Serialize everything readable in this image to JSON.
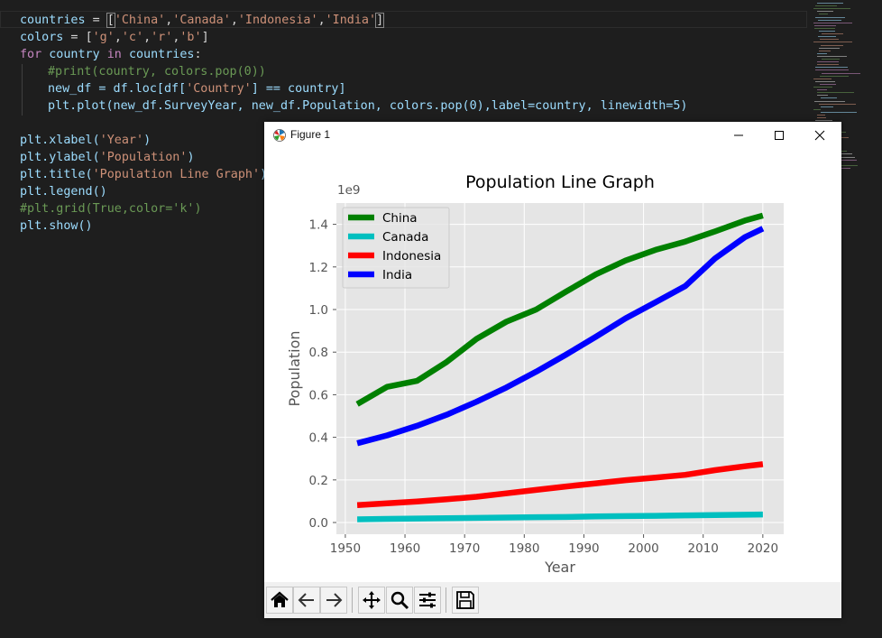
{
  "editor": {
    "line1": {
      "var": "countries",
      "eq": " = ",
      "open": "[",
      "items": [
        "'China'",
        "'Canada'",
        "'Indonesia'",
        "'India'"
      ],
      "close": "]"
    },
    "line2": {
      "var": "colors",
      "eq": " = ",
      "open": "[",
      "items": [
        "'g'",
        "'c'",
        "'r'",
        "'b'"
      ],
      "close": "]"
    },
    "line3": {
      "kw_for": "for",
      "var": "country",
      "kw_in": "in",
      "iter": "countries",
      "colon": ":"
    },
    "line4": {
      "comment": "#print(country, colors.pop(0))"
    },
    "line5": {
      "var": "new_df",
      "rest": " = df.loc[df[",
      "str": "'Country'",
      "rest2": "] == country]"
    },
    "line6": {
      "text": "plt.plot(new_df.SurveyYear, new_df.Population, colors.pop(0),label=country, linewidth=5)"
    },
    "line8": {
      "fn": "plt.xlabel(",
      "str": "'Year'",
      "close": ")"
    },
    "line9": {
      "fn": "plt.ylabel(",
      "str": "'Population'",
      "close": ")"
    },
    "line10": {
      "fn": "plt.title(",
      "str": "'Population Line Graph'",
      "close": ")"
    },
    "line11": {
      "text": "plt.legend()"
    },
    "line12": {
      "comment": "#plt.grid(True,color='k')"
    },
    "line13": {
      "text": "plt.show()"
    }
  },
  "window": {
    "title": "Figure 1"
  },
  "toolbar": {
    "buttons": [
      "home-icon",
      "back-icon",
      "forward-icon",
      "pan-icon",
      "zoom-icon",
      "configure-subplots-icon",
      "save-icon"
    ]
  },
  "chart_data": {
    "type": "line",
    "title": "Population Line Graph",
    "xlabel": "Year",
    "ylabel": "Population",
    "offset_text": "1e9",
    "xlim": [
      1948.5,
      2023.5
    ],
    "ylim": [
      -0.055,
      1.5
    ],
    "xticks": [
      1950,
      1960,
      1970,
      1980,
      1990,
      2000,
      2010,
      2020
    ],
    "yticks": [
      0.0,
      0.2,
      0.4,
      0.6,
      0.8,
      1.0,
      1.2,
      1.4
    ],
    "ytick_labels": [
      "0.0",
      "0.2",
      "0.4",
      "0.6",
      "0.8",
      "1.0",
      "1.2",
      "1.4"
    ],
    "grid": true,
    "legend_position": "upper-left",
    "x": [
      1952,
      1957,
      1962,
      1967,
      1972,
      1977,
      1982,
      1987,
      1992,
      1997,
      2002,
      2007,
      2012,
      2017,
      2020
    ],
    "series": [
      {
        "name": "China",
        "color": "#008000",
        "values": [
          0.556,
          0.637,
          0.665,
          0.754,
          0.862,
          0.943,
          1.0,
          1.084,
          1.165,
          1.23,
          1.28,
          1.319,
          1.367,
          1.418,
          1.441
        ]
      },
      {
        "name": "Canada",
        "color": "#00bfbf",
        "values": [
          0.0148,
          0.0169,
          0.0186,
          0.0201,
          0.0218,
          0.0232,
          0.0249,
          0.026,
          0.0283,
          0.0303,
          0.0314,
          0.0334,
          0.0349,
          0.0366,
          0.0378
        ]
      },
      {
        "name": "Indonesia",
        "color": "#ff0000",
        "values": [
          0.082,
          0.09,
          0.099,
          0.109,
          0.121,
          0.137,
          0.153,
          0.169,
          0.184,
          0.199,
          0.211,
          0.224,
          0.246,
          0.264,
          0.274
        ]
      },
      {
        "name": "India",
        "color": "#0000ff",
        "values": [
          0.372,
          0.409,
          0.454,
          0.506,
          0.567,
          0.634,
          0.708,
          0.788,
          0.872,
          0.959,
          1.034,
          1.11,
          1.24,
          1.34,
          1.38
        ]
      }
    ],
    "colors": {
      "plot_background": "#e5e5e5",
      "grid": "#ffffff",
      "text": "#555555",
      "title": "#000000"
    }
  }
}
